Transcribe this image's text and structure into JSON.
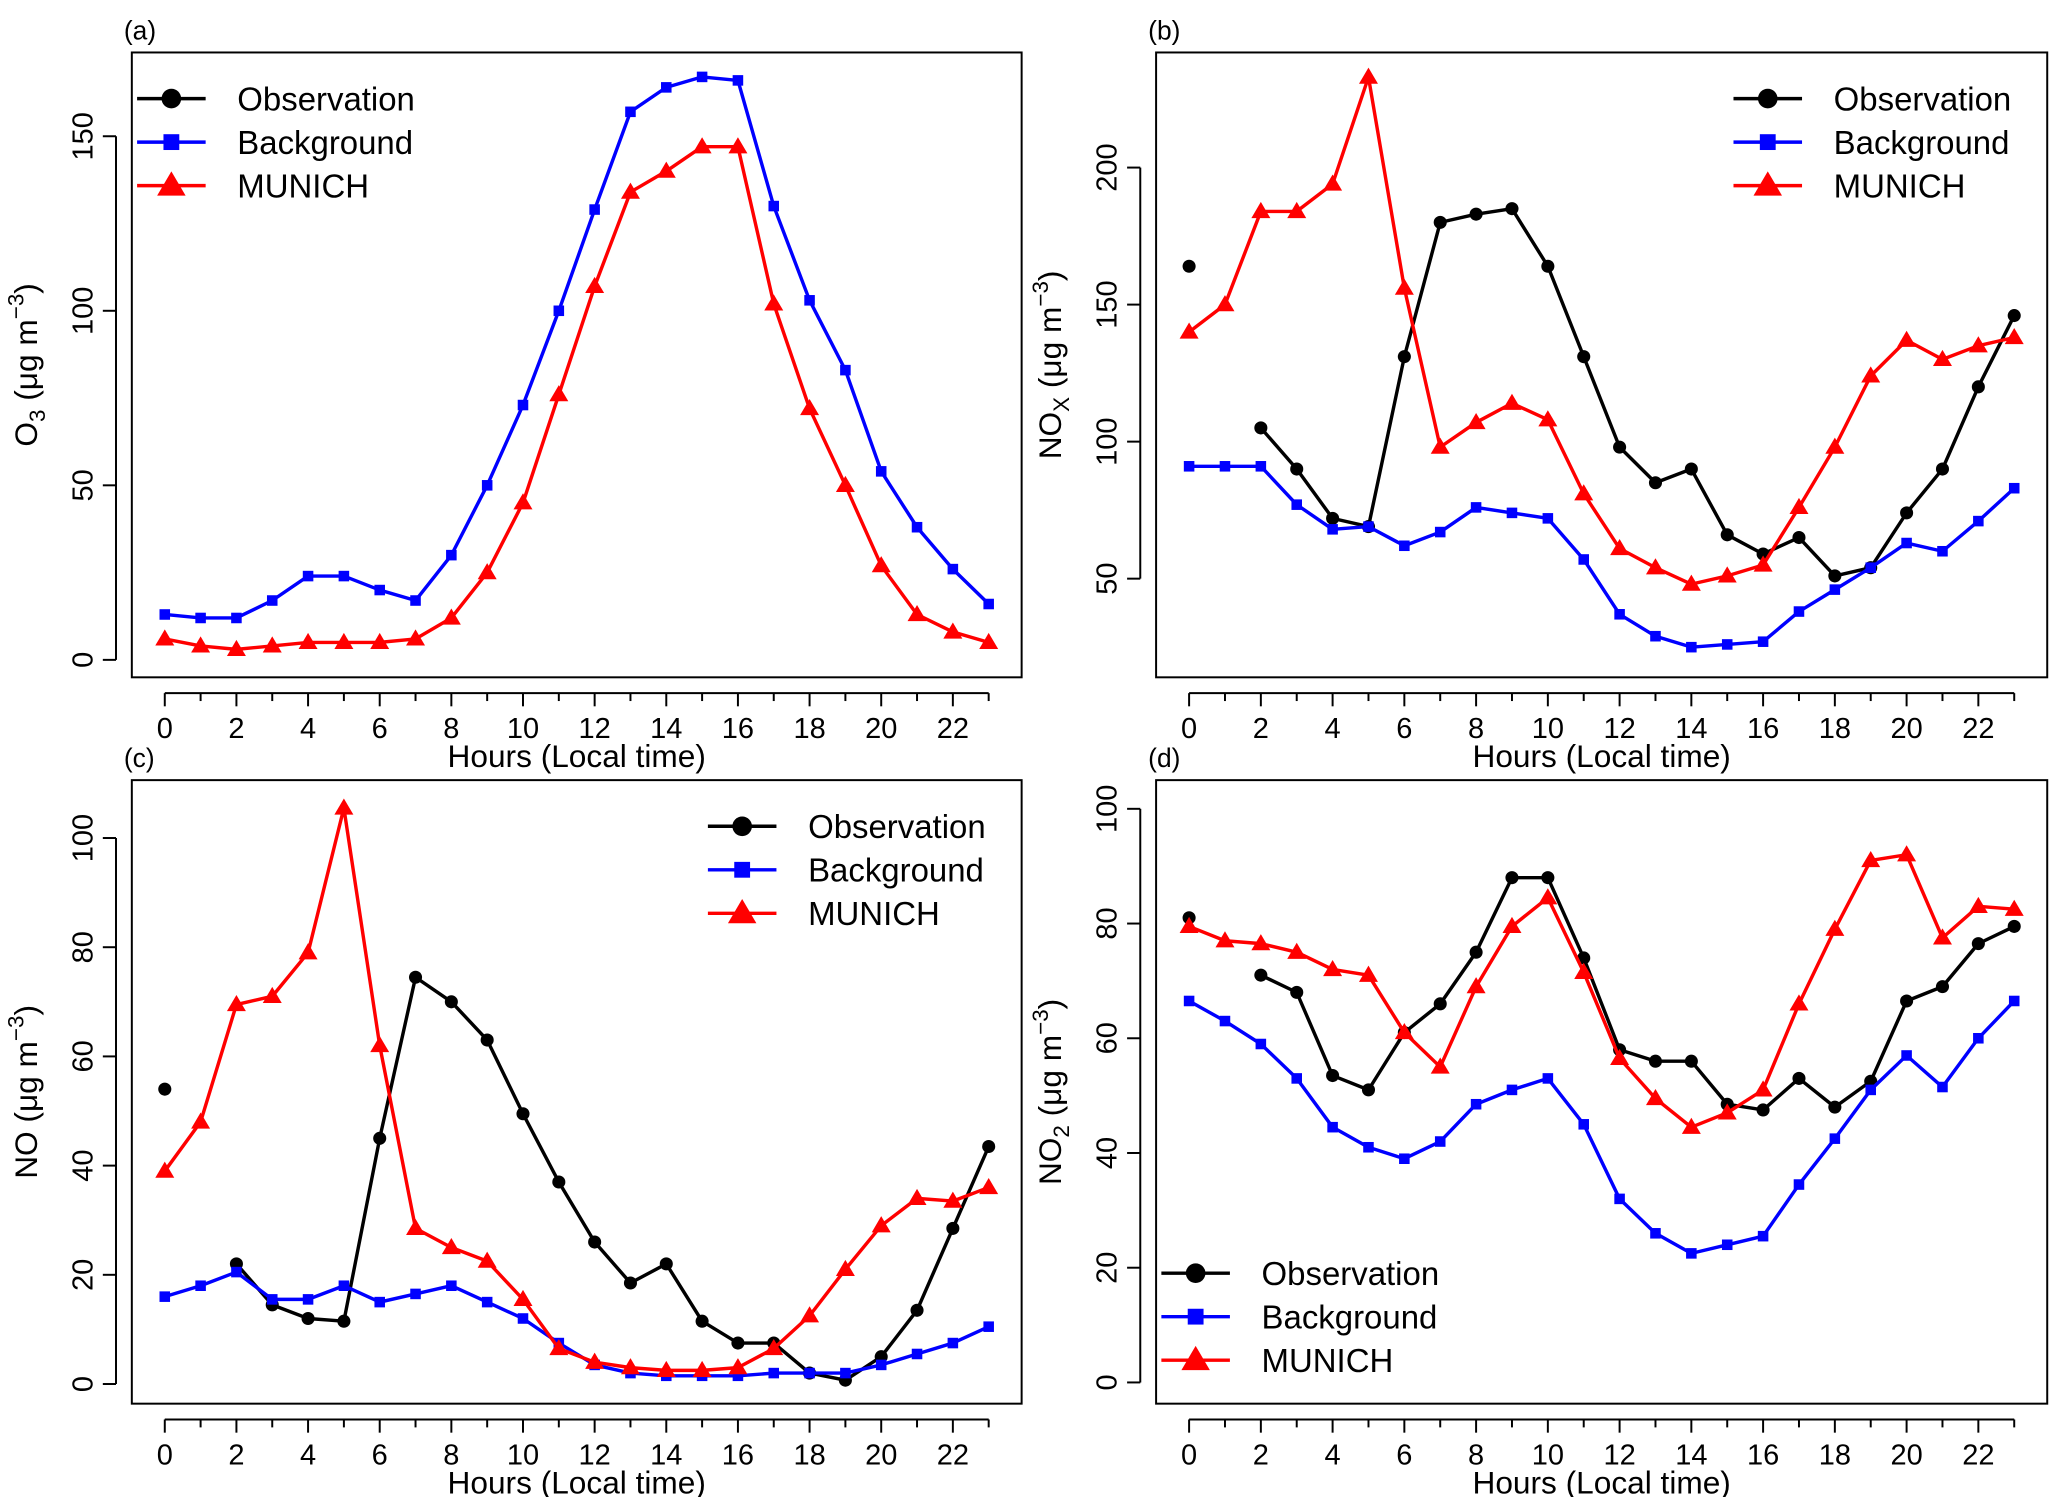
{
  "chart_data": [
    {
      "type": "line",
      "label": "(a)",
      "xlabel": "Hours (Local time)",
      "ylabel": [
        "O",
        {
          "sub": "3"
        },
        " (μg m",
        {
          "sup": "−3"
        },
        ")"
      ],
      "x": [
        0,
        1,
        2,
        3,
        4,
        5,
        6,
        7,
        8,
        9,
        10,
        11,
        12,
        13,
        14,
        15,
        16,
        17,
        18,
        19,
        20,
        21,
        22,
        23
      ],
      "series": [
        {
          "name": "Observation",
          "color": "#000000",
          "marker": "circle",
          "values": [
            null,
            null,
            null,
            null,
            null,
            null,
            null,
            null,
            null,
            null,
            null,
            null,
            null,
            null,
            null,
            null,
            null,
            null,
            null,
            null,
            null,
            null,
            null,
            null
          ]
        },
        {
          "name": "Background",
          "color": "#0000ff",
          "marker": "square",
          "values": [
            13,
            12,
            12,
            17,
            24,
            24,
            20,
            17,
            30,
            50,
            73,
            100,
            129,
            157,
            164,
            167,
            166,
            130,
            103,
            83,
            54,
            38,
            26,
            16
          ]
        },
        {
          "name": "MUNICH",
          "color": "#ff0000",
          "marker": "triangle",
          "values": [
            6,
            4,
            3,
            4,
            5,
            5,
            5,
            6,
            12,
            25,
            45,
            76,
            107,
            134,
            140,
            147,
            147,
            102,
            72,
            50,
            27,
            13,
            8,
            5
          ]
        }
      ],
      "xlim": [
        -0.92,
        23.92
      ],
      "ylim": [
        -5,
        174
      ],
      "xticks": [
        0,
        2,
        4,
        6,
        8,
        10,
        12,
        14,
        16,
        18,
        20,
        22
      ],
      "xminor_ticks": [
        1,
        3,
        5,
        7,
        9,
        11,
        13,
        15,
        17,
        19,
        21,
        23
      ],
      "yticks": [
        0,
        50,
        100,
        150
      ],
      "legend_position": "top-left"
    },
    {
      "type": "line",
      "label": "(b)",
      "xlabel": "Hours (Local time)",
      "ylabel": [
        "NO",
        {
          "sub": "X"
        },
        " (μg m",
        {
          "sup": "−3"
        },
        ")"
      ],
      "x": [
        0,
        1,
        2,
        3,
        4,
        5,
        6,
        7,
        8,
        9,
        10,
        11,
        12,
        13,
        14,
        15,
        16,
        17,
        18,
        19,
        20,
        21,
        22,
        23
      ],
      "series": [
        {
          "name": "Observation",
          "color": "#000000",
          "marker": "circle",
          "values": [
            164,
            null,
            105,
            90,
            72,
            69,
            131,
            180,
            183,
            185,
            164,
            131,
            98,
            85,
            90,
            66,
            59,
            65,
            51,
            54,
            74,
            90,
            120,
            146
          ]
        },
        {
          "name": "Background",
          "color": "#0000ff",
          "marker": "square",
          "values": [
            91,
            91,
            91,
            77,
            68,
            69,
            62,
            67,
            76,
            74,
            72,
            57,
            37,
            29,
            25,
            26,
            27,
            38,
            46,
            54,
            63,
            60,
            71,
            83
          ]
        },
        {
          "name": "MUNICH",
          "color": "#ff0000",
          "marker": "triangle",
          "values": [
            140,
            150,
            184,
            184,
            194,
            233,
            156,
            98,
            107,
            114,
            108,
            81,
            61,
            54,
            48,
            51,
            55,
            76,
            98,
            124,
            137,
            130,
            135,
            138
          ]
        }
      ],
      "xlim": [
        -0.92,
        23.92
      ],
      "ylim": [
        14,
        242
      ],
      "xticks": [
        0,
        2,
        4,
        6,
        8,
        10,
        12,
        14,
        16,
        18,
        20,
        22
      ],
      "xminor_ticks": [
        1,
        3,
        5,
        7,
        9,
        11,
        13,
        15,
        17,
        19,
        21,
        23
      ],
      "yticks": [
        50,
        100,
        150,
        200
      ],
      "legend_position": "top-right"
    },
    {
      "type": "line",
      "label": "(c)",
      "xlabel": "Hours (Local time)",
      "ylabel": [
        "NO (μg m",
        {
          "sup": "−3"
        },
        ")"
      ],
      "x": [
        0,
        1,
        2,
        3,
        4,
        5,
        6,
        7,
        8,
        9,
        10,
        11,
        12,
        13,
        14,
        15,
        16,
        17,
        18,
        19,
        20,
        21,
        22,
        23
      ],
      "series": [
        {
          "name": "Observation",
          "color": "#000000",
          "marker": "circle",
          "values": [
            54,
            null,
            22,
            14.5,
            12,
            11.5,
            45,
            74.5,
            70,
            63,
            49.5,
            37,
            26,
            18.5,
            22,
            11.5,
            7.5,
            7.5,
            2,
            0.7,
            5,
            13.5,
            28.5,
            43.5
          ]
        },
        {
          "name": "Background",
          "color": "#0000ff",
          "marker": "square",
          "values": [
            16,
            18,
            20.5,
            15.5,
            15.5,
            18,
            15,
            16.5,
            18,
            15,
            12,
            7.5,
            3.5,
            2,
            1.5,
            1.5,
            1.5,
            2,
            2,
            2,
            3.5,
            5.5,
            7.5,
            10.5
          ]
        },
        {
          "name": "MUNICH",
          "color": "#ff0000",
          "marker": "triangle",
          "values": [
            39,
            48,
            69.5,
            71,
            79,
            105.5,
            62,
            28.5,
            25,
            22.5,
            15.5,
            6.5,
            4,
            3,
            2.5,
            2.5,
            3,
            6.5,
            12.5,
            21,
            29,
            34,
            33.5,
            36
          ]
        }
      ],
      "xlim": [
        -0.92,
        23.92
      ],
      "ylim": [
        -3.6,
        110.6
      ],
      "xticks": [
        0,
        2,
        4,
        6,
        8,
        10,
        12,
        14,
        16,
        18,
        20,
        22
      ],
      "xminor_ticks": [
        1,
        3,
        5,
        7,
        9,
        11,
        13,
        15,
        17,
        19,
        21,
        23
      ],
      "yticks": [
        0,
        20,
        40,
        60,
        80,
        100
      ],
      "legend_position": "top-right"
    },
    {
      "type": "line",
      "label": "(d)",
      "xlabel": "Hours (Local time)",
      "ylabel": [
        "NO",
        {
          "sub": "2"
        },
        " (μg m",
        {
          "sup": "−3"
        },
        ")"
      ],
      "x": [
        0,
        1,
        2,
        3,
        4,
        5,
        6,
        7,
        8,
        9,
        10,
        11,
        12,
        13,
        14,
        15,
        16,
        17,
        18,
        19,
        20,
        21,
        22,
        23
      ],
      "series": [
        {
          "name": "Observation",
          "color": "#000000",
          "marker": "circle",
          "values": [
            81,
            null,
            71,
            68,
            53.5,
            51,
            61,
            66,
            75,
            88,
            88,
            74,
            58,
            56,
            56,
            48.5,
            47.5,
            53,
            48,
            52.5,
            66.5,
            69,
            76.5,
            79.5
          ]
        },
        {
          "name": "Background",
          "color": "#0000ff",
          "marker": "square",
          "values": [
            66.5,
            63,
            59,
            53,
            44.5,
            41,
            39,
            42,
            48.5,
            51,
            53,
            45,
            32,
            26,
            22.5,
            24,
            25.5,
            34.5,
            42.5,
            51,
            57,
            51.5,
            60,
            66.5
          ]
        },
        {
          "name": "MUNICH",
          "color": "#ff0000",
          "marker": "triangle",
          "values": [
            79.5,
            77,
            76.5,
            75,
            72,
            71,
            61,
            55,
            69,
            79.5,
            84.5,
            71.5,
            56.5,
            49.5,
            44.5,
            47,
            51,
            66,
            79,
            91,
            92,
            77.5,
            83,
            82.5
          ]
        }
      ],
      "xlim": [
        -0.92,
        23.92
      ],
      "ylim": [
        -3.7,
        105
      ],
      "xticks": [
        0,
        2,
        4,
        6,
        8,
        10,
        12,
        14,
        16,
        18,
        20,
        22
      ],
      "xminor_ticks": [
        1,
        3,
        5,
        7,
        9,
        11,
        13,
        15,
        17,
        19,
        21,
        23
      ],
      "yticks": [
        0,
        20,
        40,
        60,
        80,
        100
      ],
      "legend_position": "bottom-left"
    }
  ]
}
